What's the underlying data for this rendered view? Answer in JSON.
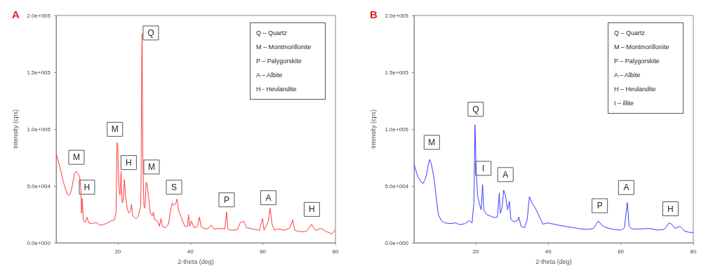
{
  "chart_data": [
    {
      "type": "line",
      "title": "A",
      "xlabel": "2-theta (deg)",
      "ylabel": "Intensity (cps)",
      "xlim": [
        3,
        80
      ],
      "xticks": [
        20,
        40,
        60,
        80
      ],
      "ylim": [
        0,
        200000
      ],
      "yticks": [
        {
          "value": 0,
          "label": "0.0e+000"
        },
        {
          "value": 50000,
          "label": "5.0e+004"
        },
        {
          "value": 100000,
          "label": "1.0e+005"
        },
        {
          "value": 150000,
          "label": "1.5e+005"
        },
        {
          "value": 200000,
          "label": "2.0e+005"
        }
      ],
      "grid": false,
      "marker": "none",
      "line_style": "solid",
      "series": [
        {
          "color": "#ff3b3b",
          "x": [
            3,
            4,
            5,
            6,
            6.5,
            7,
            7.5,
            8,
            8.5,
            9,
            9.5,
            9.8,
            10,
            10.2,
            10.5,
            11,
            11.5,
            12,
            13,
            14,
            15,
            16,
            17,
            18,
            19,
            19.5,
            19.8,
            20,
            20.3,
            20.6,
            20.9,
            21.2,
            21.5,
            21.8,
            22.2,
            22.6,
            23,
            23.5,
            23.8,
            24.1,
            25,
            25.5,
            26,
            26.3,
            26.4,
            26.6,
            26.7,
            26.9,
            27.2,
            27.5,
            27.8,
            28.1,
            28.5,
            29,
            29.5,
            29.8,
            30.2,
            31,
            31.5,
            31.9,
            32.3,
            33,
            33.5,
            34,
            34.5,
            35,
            35.5,
            36,
            36.3,
            36.8,
            37.5,
            38,
            38.5,
            39.2,
            39.5,
            39.8,
            40.3,
            41,
            42,
            42.5,
            43,
            44,
            45,
            45.7,
            46.5,
            48,
            49.5,
            50,
            50.3,
            51.5,
            53,
            53.8,
            54.7,
            55.5,
            57,
            59,
            59.9,
            60.3,
            61.5,
            62,
            62.5,
            63.2,
            64,
            66,
            67.5,
            68.2,
            68.8,
            70,
            72,
            73.4,
            74.5,
            76,
            77.5,
            79,
            80
          ],
          "values": [
            78700,
            67000,
            53400,
            43100,
            41500,
            44000,
            51000,
            60000,
            63000,
            61000,
            58000,
            48000,
            26000,
            39000,
            20000,
            18000,
            22500,
            17400,
            17000,
            17900,
            15600,
            16000,
            17200,
            19000,
            20000,
            26000,
            88000,
            84000,
            49000,
            42000,
            62600,
            35000,
            37000,
            55700,
            39700,
            30500,
            26000,
            28000,
            34000,
            23700,
            21300,
            22500,
            28000,
            32500,
            48900,
            163500,
            184000,
            71800,
            32800,
            30500,
            53400,
            51000,
            39700,
            26000,
            23700,
            27000,
            20200,
            19000,
            14500,
            21300,
            14500,
            13300,
            14500,
            16700,
            28000,
            35000,
            32800,
            35000,
            38500,
            28000,
            22500,
            17900,
            14500,
            14500,
            24800,
            14500,
            19000,
            13300,
            14500,
            22500,
            14000,
            12200,
            12600,
            15600,
            12200,
            12600,
            12200,
            27000,
            12200,
            11000,
            11700,
            17900,
            19000,
            13300,
            12200,
            11000,
            21300,
            11000,
            19000,
            30500,
            16700,
            11000,
            12200,
            11000,
            13300,
            20200,
            11000,
            9900,
            9900,
            16300,
            11000,
            12600,
            9900,
            8000,
            11000
          ]
        }
      ],
      "annotations": [
        {
          "text": "M",
          "x": 8.6,
          "y": 75200
        },
        {
          "text": "H",
          "x": 11.5,
          "y": 48900
        },
        {
          "text": "M",
          "x": 19.2,
          "y": 99800
        },
        {
          "text": "H",
          "x": 23.0,
          "y": 70600
        },
        {
          "text": "Q",
          "x": 29.1,
          "y": 184600
        },
        {
          "text": "M",
          "x": 29.3,
          "y": 66700
        },
        {
          "text": "S",
          "x": 35.5,
          "y": 48900
        },
        {
          "text": "P",
          "x": 50.0,
          "y": 37800
        },
        {
          "text": "A",
          "x": 61.5,
          "y": 39700
        },
        {
          "text": "H",
          "x": 73.5,
          "y": 29400
        },
        "Q – Quartz",
        "M – Montmorillonite",
        "P – Palygorskite",
        "A – Albite",
        "H - Heulandite"
      ]
    },
    {
      "type": "line",
      "title": "B",
      "xlabel": "2-theta (deg)",
      "ylabel": "Intensity (cps)",
      "xlim": [
        3,
        80
      ],
      "xticks": [
        20,
        40,
        60,
        80
      ],
      "ylim": [
        0,
        200000
      ],
      "yticks": [
        {
          "value": 0,
          "label": "0.0e+000"
        },
        {
          "value": 50000,
          "label": "5.0e+004"
        },
        {
          "value": 100000,
          "label": "1.0e+005"
        },
        {
          "value": 150000,
          "label": "1.5e+005"
        },
        {
          "value": 200000,
          "label": "2.0e+005"
        }
      ],
      "grid": false,
      "marker": "none",
      "line_style": "solid",
      "series": [
        {
          "color": "#3b3bff",
          "x": [
            3,
            4,
            5,
            5.5,
            6,
            6.5,
            7,
            7.3,
            7.8,
            8.3,
            8.7,
            9.2,
            9.7,
            10.5,
            11.5,
            13,
            14.5,
            15.5,
            17,
            18.2,
            19,
            19.5,
            19.8,
            20.1,
            20.5,
            21,
            21.5,
            21.9,
            22.2,
            23,
            24,
            25,
            26,
            26.5,
            26.8,
            27.3,
            27.7,
            28.2,
            28.8,
            29.3,
            29.7,
            30.5,
            31.5,
            31.9,
            32.5,
            33.5,
            34.2,
            34.8,
            35.5,
            36.5,
            37.3,
            38.5,
            40,
            41,
            43,
            45,
            47,
            49,
            51,
            52.5,
            53.8,
            54.8,
            56,
            58,
            60,
            61,
            61.8,
            62.3,
            63,
            65,
            68,
            70,
            72,
            73.3,
            74,
            75,
            76.3,
            77.5,
            79,
            80
          ],
          "values": [
            69000,
            58500,
            53300,
            52200,
            55400,
            60600,
            70000,
            73300,
            69000,
            60600,
            52200,
            37500,
            25000,
            19600,
            17500,
            16800,
            17500,
            16000,
            16800,
            19600,
            17500,
            35400,
            103800,
            67000,
            41700,
            34300,
            29000,
            51200,
            29000,
            24800,
            23700,
            22300,
            22700,
            43800,
            26000,
            31200,
            46300,
            41700,
            29000,
            36400,
            20600,
            18500,
            19600,
            22700,
            14300,
            13300,
            20600,
            40600,
            35400,
            30100,
            24800,
            16400,
            17500,
            16800,
            15400,
            14300,
            13300,
            12200,
            11800,
            12600,
            19200,
            15400,
            13300,
            11800,
            11200,
            13300,
            35400,
            14700,
            12200,
            12200,
            12600,
            11200,
            11800,
            17500,
            16400,
            12600,
            14700,
            10500,
            9100,
            9100
          ]
        }
      ],
      "annotations": [
        {
          "text": "M",
          "x": 7.9,
          "y": 88400
        },
        {
          "text": "Q",
          "x": 20.0,
          "y": 117500
        },
        {
          "text": "I",
          "x": 22.1,
          "y": 65500
        },
        {
          "text": "A",
          "x": 28.2,
          "y": 60000
        },
        {
          "text": "P",
          "x": 54.2,
          "y": 32600
        },
        {
          "text": "A",
          "x": 61.5,
          "y": 48600
        },
        {
          "text": "H",
          "x": 73.7,
          "y": 29900
        },
        "Q – Quartz",
        "M – Montmorillonite",
        "P – Palygorskite",
        "A – Albite",
        "H – Heulandite",
        "I – illite"
      ]
    }
  ]
}
